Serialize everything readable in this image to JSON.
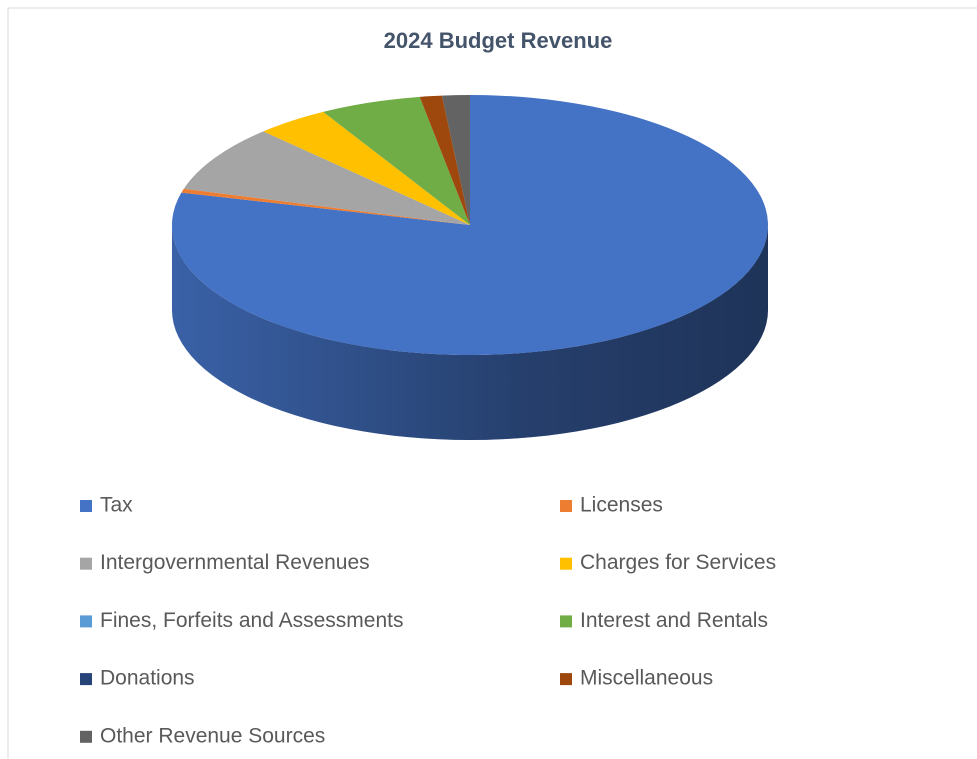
{
  "chart_data": {
    "type": "pie",
    "title": "2024 Budget Revenue",
    "categories": [
      "Tax",
      "Licenses",
      "Intergovernmental Revenues",
      "Charges for Services",
      "Fines, Forfeits and Assessments",
      "Interest and Rentals",
      "Donations",
      "Miscellaneous",
      "Other Revenue Sources"
    ],
    "values": [
      79,
      0.5,
      8.3,
      4,
      0,
      5.5,
      0,
      1.2,
      1.5
    ],
    "colors": [
      "#4472c4",
      "#ed7d31",
      "#a5a5a5",
      "#ffc000",
      "#5b9bd5",
      "#70ad47",
      "#264478",
      "#9e480e",
      "#636363"
    ],
    "legend": "bottom",
    "three_d": true
  }
}
